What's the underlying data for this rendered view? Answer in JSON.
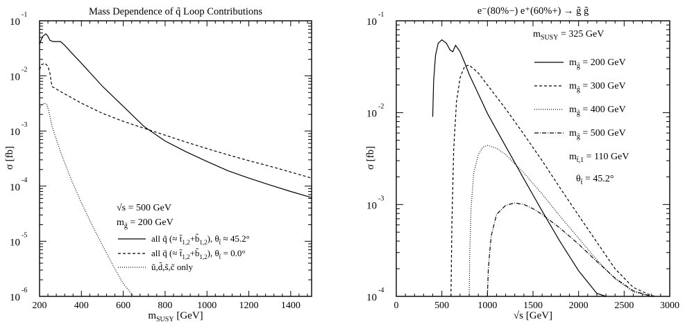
{
  "chart_data": [
    {
      "type": "line",
      "title": "Mass Dependence of q̃ Loop Contributions",
      "xlabel": "m",
      "xlabel_sub": "SUSY",
      "xlabel_unit": " [GeV]",
      "ylabel": "σ [fb]",
      "x_scale": "linear",
      "y_scale": "log",
      "xlim": [
        200,
        1500
      ],
      "ylim": [
        1e-06,
        0.1
      ],
      "x_ticks": [
        200,
        400,
        600,
        800,
        1000,
        1200,
        1400
      ],
      "y_ticks": [
        -6,
        -5,
        -4,
        -3,
        -2,
        -1
      ],
      "legend": [
        "√s = 500 GeV",
        "m g̃ = 200 GeV"
      ],
      "series": [
        {
          "name": "all q̃ (≈ t̃1,2+b̃1,2), θt̃ ≈ 45.2°",
          "style": "solid",
          "x": [
            200,
            215,
            230,
            240,
            250,
            265,
            300,
            320,
            350,
            400,
            500,
            600,
            700,
            800,
            900,
            1000,
            1100,
            1200,
            1300,
            1400,
            1500
          ],
          "y": [
            0.038,
            0.052,
            0.058,
            0.052,
            0.044,
            0.042,
            0.042,
            0.036,
            0.027,
            0.017,
            0.0065,
            0.0028,
            0.0012,
            0.00066,
            0.00042,
            0.00028,
            0.00019,
            0.00014,
            0.000105,
            8e-05,
            6.2e-05
          ]
        },
        {
          "name": "all q̃ (≈ t̃1,2+b̃1,2), θt̃ = 0.0°",
          "style": "dashed",
          "x": [
            200,
            210,
            225,
            240,
            250,
            255,
            260,
            300,
            400,
            500,
            600,
            700,
            800,
            900,
            1000,
            1100,
            1200,
            1300,
            1400,
            1500
          ],
          "y": [
            0.013,
            0.016,
            0.017,
            0.015,
            0.011,
            0.008,
            0.0064,
            0.0052,
            0.0032,
            0.0021,
            0.0015,
            0.00112,
            0.00084,
            0.00063,
            0.00048,
            0.00037,
            0.00029,
            0.00023,
            0.00018,
            0.00014
          ]
        },
        {
          "name": "ũ,d̃,s̃,c̃ only",
          "style": "dotted",
          "x": [
            200,
            210,
            225,
            235,
            245,
            260,
            300,
            350,
            400,
            450,
            500,
            550,
            600,
            650
          ],
          "y": [
            0.0025,
            0.003,
            0.0032,
            0.003,
            0.0022,
            0.0012,
            0.00042,
            0.000135,
            5e-05,
            2e-05,
            8.5e-06,
            3.7e-06,
            1.7e-06,
            8.5e-07
          ]
        }
      ]
    },
    {
      "type": "line",
      "title": "e⁻(80%−) e⁺(60%+) → g̃ g̃",
      "xlabel": "√s [GeV]",
      "ylabel": "σ [fb]",
      "x_scale": "linear",
      "y_scale": "log",
      "xlim": [
        0,
        3000
      ],
      "ylim": [
        0.0001,
        0.1
      ],
      "x_ticks": [
        0,
        500,
        1000,
        1500,
        2000,
        2500,
        3000
      ],
      "y_ticks": [
        -4,
        -3,
        -2,
        -1
      ],
      "legend": [
        "m SUSY = 325 GeV",
        "m t̃,1 = 110 GeV",
        "θt̃ = 45.2°"
      ],
      "series": [
        {
          "name": "m g̃ = 200 GeV",
          "style": "solid",
          "x": [
            400,
            410,
            430,
            460,
            500,
            550,
            590,
            620,
            650,
            700,
            750,
            800,
            900,
            1000,
            1200,
            1400,
            1600,
            1800,
            2000,
            2200,
            2300
          ],
          "y": [
            0.009,
            0.022,
            0.042,
            0.057,
            0.062,
            0.057,
            0.048,
            0.046,
            0.054,
            0.046,
            0.035,
            0.026,
            0.016,
            0.0098,
            0.0043,
            0.0019,
            0.00085,
            0.00039,
            0.00019,
            0.000108,
            9.8e-05
          ]
        },
        {
          "name": "m g̃ = 300 GeV",
          "style": "dashed",
          "x": [
            600,
            610,
            630,
            660,
            700,
            750,
            800,
            900,
            1000,
            1200,
            1400,
            1600,
            1800,
            2000,
            2200,
            2400,
            2600,
            2800,
            2850
          ],
          "y": [
            0.0001,
            0.0006,
            0.004,
            0.013,
            0.024,
            0.032,
            0.033,
            0.027,
            0.02,
            0.011,
            0.0058,
            0.003,
            0.0015,
            0.00076,
            0.00039,
            0.0002,
            0.000125,
            0.000102,
            0.0001
          ]
        },
        {
          "name": "m g̃ = 400 GeV",
          "style": "dotted",
          "x": [
            800,
            805,
            820,
            850,
            900,
            950,
            1000,
            1100,
            1200,
            1400,
            1600,
            1800,
            2000,
            2200,
            2400,
            2600,
            2800
          ],
          "y": [
            0.0001,
            0.00025,
            0.0009,
            0.0022,
            0.0035,
            0.0042,
            0.0044,
            0.0041,
            0.0035,
            0.0022,
            0.0013,
            0.00074,
            0.00043,
            0.00025,
            0.000155,
            0.000112,
            0.0001
          ]
        },
        {
          "name": "m g̃ = 500 GeV",
          "style": "dashdot",
          "x": [
            1000,
            1010,
            1040,
            1100,
            1200,
            1300,
            1400,
            1500,
            1600,
            1800,
            2000,
            2200,
            2400,
            2600,
            2800
          ],
          "y": [
            0.0001,
            0.0002,
            0.00045,
            0.00078,
            0.00098,
            0.00104,
            0.001,
            0.0009,
            0.00078,
            0.00055,
            0.00037,
            0.00024,
            0.000158,
            0.000115,
            0.0001
          ]
        }
      ]
    }
  ]
}
